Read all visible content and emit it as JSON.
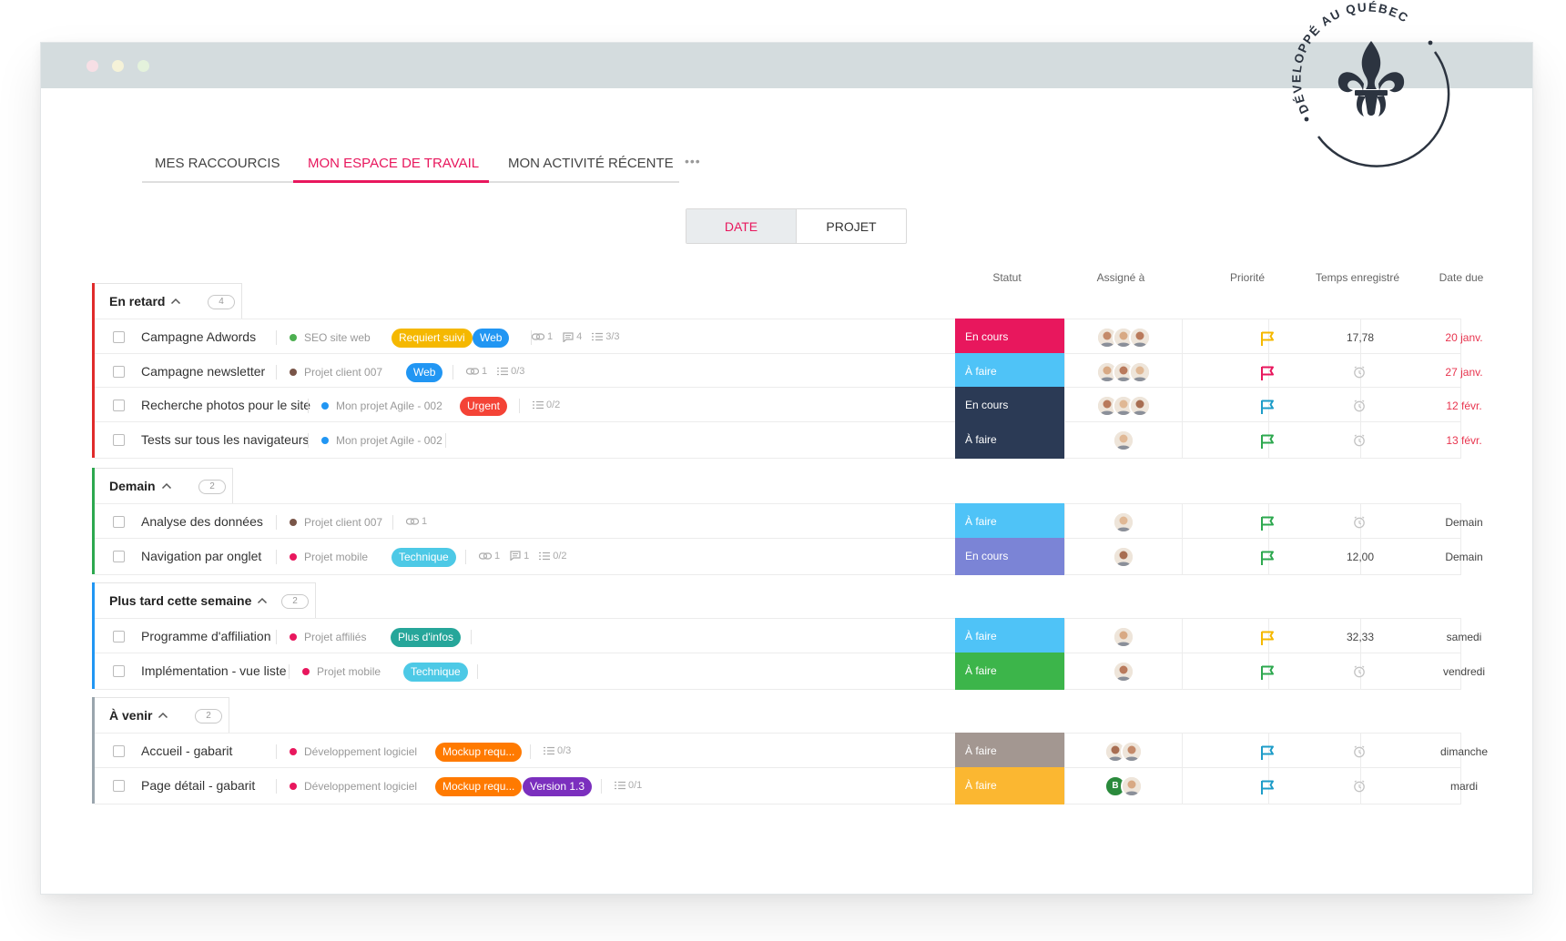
{
  "seal": {
    "text": "DÉVELOPPÉ AU QUÉBEC"
  },
  "tabs": [
    {
      "label": "MES RACCOURCIS"
    },
    {
      "label": "MON ESPACE DE TRAVAIL"
    },
    {
      "label": "MON ACTIVITÉ RÉCENTE"
    }
  ],
  "tabs_more": "•••",
  "toggle": {
    "date": "DATE",
    "project": "PROJET"
  },
  "columns": {
    "status": "Statut",
    "assignee": "Assigné à",
    "priority": "Priorité",
    "time": "Temps enregistré",
    "due": "Date due"
  },
  "colors": {
    "accent": "#e8175d",
    "late": "#e8344e"
  },
  "groups": [
    {
      "title": "En retard",
      "count": "4",
      "color": "#e02b2b",
      "rows": [
        {
          "name": "Campagne Adwords",
          "project": "SEO site web",
          "project_color": "#4caf50",
          "tags": [
            {
              "label": "Requiert suivi",
              "color": "#f5b800"
            },
            {
              "label": "Web",
              "color": "#2196f3"
            }
          ],
          "meta": {
            "links": "1",
            "comments": "4",
            "checklist": "3/3"
          },
          "status": "En cours",
          "status_color": "#e8175d",
          "assignees": 3,
          "priority_color": "#f5b800",
          "time": "17,78",
          "due": "20 janv.",
          "late": true
        },
        {
          "name": "Campagne newsletter",
          "project": "Projet client 007",
          "project_color": "#795548",
          "tags": [
            {
              "label": "Web",
              "color": "#2196f3"
            }
          ],
          "meta": {
            "links": "1",
            "checklist": "0/3"
          },
          "status": "À faire",
          "status_color": "#4fc3f7",
          "assignees": 3,
          "priority_color": "#e8175d",
          "time": "",
          "due": "27 janv.",
          "late": true
        },
        {
          "name": "Recherche photos pour le site",
          "project": "Mon projet Agile - 002",
          "project_color": "#2196f3",
          "tags": [
            {
              "label": "Urgent",
              "color": "#f44336"
            }
          ],
          "meta": {
            "checklist": "0/2"
          },
          "status": "En cours",
          "status_color": "#2b3a55",
          "assignees": 3,
          "priority_color": "#1e9cc8",
          "time": "",
          "due": "12 févr.",
          "late": true
        },
        {
          "name": "Tests sur tous les navigateurs",
          "project": "Mon projet Agile - 002",
          "project_color": "#2196f3",
          "tags": [],
          "meta": {},
          "status": "À faire",
          "status_color": "#2b3a55",
          "assignees": 1,
          "priority_color": "#2da84f",
          "time": "",
          "due": "13 févr.",
          "late": true
        }
      ]
    },
    {
      "title": "Demain",
      "count": "2",
      "color": "#2da84f",
      "rows": [
        {
          "name": "Analyse des données",
          "project": "Projet client 007",
          "project_color": "#795548",
          "tags": [],
          "meta": {
            "links": "1"
          },
          "status": "À faire",
          "status_color": "#4fc3f7",
          "assignees": 1,
          "priority_color": "#2da84f",
          "time": "",
          "due": "Demain",
          "late": false
        },
        {
          "name": "Navigation par onglet",
          "project": "Projet mobile",
          "project_color": "#e8175d",
          "tags": [
            {
              "label": "Technique",
              "color": "#4dc9e6"
            }
          ],
          "meta": {
            "links": "1",
            "comments": "1",
            "checklist": "0/2"
          },
          "status": "En cours",
          "status_color": "#7b84d6",
          "assignees": 1,
          "priority_color": "#2da84f",
          "time": "12,00",
          "due": "Demain",
          "late": false
        }
      ]
    },
    {
      "title": "Plus tard cette semaine",
      "count": "2",
      "color": "#2196f3",
      "rows": [
        {
          "name": "Programme d'affiliation",
          "project": "Projet affiliés",
          "project_color": "#e8175d",
          "tags": [
            {
              "label": "Plus d'infos",
              "color": "#26a69a"
            }
          ],
          "meta": {},
          "status": "À faire",
          "status_color": "#4fc3f7",
          "assignees": 1,
          "priority_color": "#f5b800",
          "time": "32,33",
          "due": "samedi",
          "late": false
        },
        {
          "name": "Implémentation - vue liste",
          "project": "Projet mobile",
          "project_color": "#e8175d",
          "tags": [
            {
              "label": "Technique",
              "color": "#4dc9e6"
            }
          ],
          "meta": {},
          "status": "À faire",
          "status_color": "#3cb54a",
          "assignees": 1,
          "priority_color": "#2da84f",
          "time": "",
          "due": "vendredi",
          "late": false
        }
      ]
    },
    {
      "title": "À venir",
      "count": "2",
      "color": "#9aa5ad",
      "rows": [
        {
          "name": "Accueil - gabarit",
          "project": "Développement logiciel",
          "project_color": "#e8175d",
          "tags": [
            {
              "label": "Mockup requ...",
              "color": "#ff7a00"
            }
          ],
          "meta": {
            "checklist": "0/3"
          },
          "status": "À faire",
          "status_color": "#a39791",
          "assignees": 2,
          "priority_color": "#1e9cc8",
          "time": "",
          "due": "dimanche",
          "late": false
        },
        {
          "name": "Page détail - gabarit",
          "project": "Développement logiciel",
          "project_color": "#e8175d",
          "tags": [
            {
              "label": "Mockup requ...",
              "color": "#ff7a00"
            },
            {
              "label": "Version 1.3",
              "color": "#7b2fbe"
            }
          ],
          "meta": {
            "checklist": "0/1"
          },
          "status": "À faire",
          "status_color": "#fbb731",
          "assignees": 2,
          "avatar_initial": "B",
          "priority_color": "#1e9cc8",
          "time": "",
          "due": "mardi",
          "late": false
        }
      ]
    }
  ]
}
